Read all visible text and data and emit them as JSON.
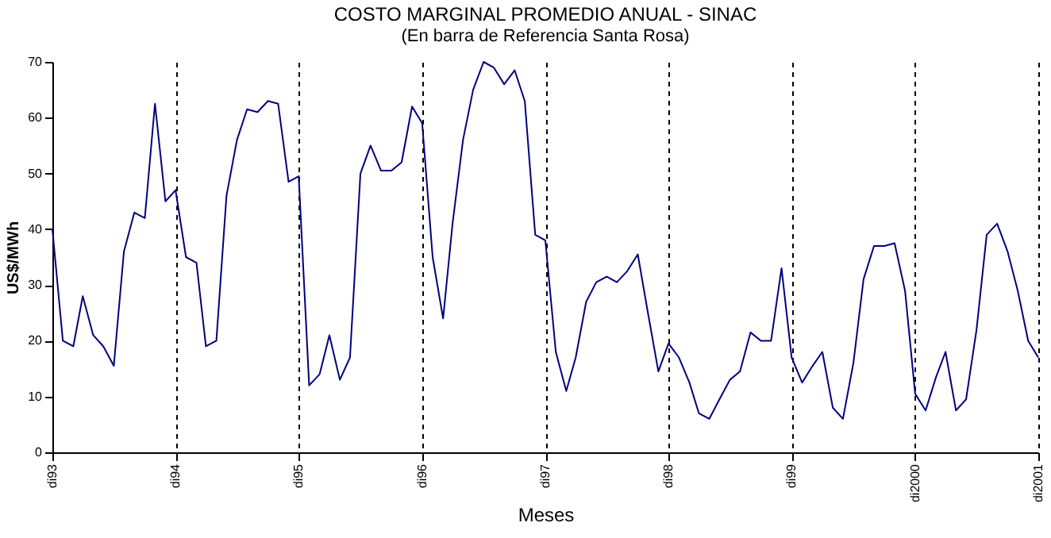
{
  "chart_data": {
    "type": "line",
    "title": "COSTO MARGINAL PROMEDIO ANUAL - SINAC",
    "subtitle": "(En barra de Referencia Santa Rosa)",
    "xlabel": "Meses",
    "ylabel": "US$/MWh",
    "x": [
      "1993-12",
      "1994-01",
      "1994-02",
      "1994-03",
      "1994-04",
      "1994-05",
      "1994-06",
      "1994-07",
      "1994-08",
      "1994-09",
      "1994-10",
      "1994-11",
      "1994-12",
      "1995-01",
      "1995-02",
      "1995-03",
      "1995-04",
      "1995-05",
      "1995-06",
      "1995-07",
      "1995-08",
      "1995-09",
      "1995-10",
      "1995-11",
      "1995-12",
      "1996-01",
      "1996-02",
      "1996-03",
      "1996-04",
      "1996-05",
      "1996-06",
      "1996-07",
      "1996-08",
      "1996-09",
      "1996-10",
      "1996-11",
      "1996-12",
      "1997-01",
      "1997-02",
      "1997-03",
      "1997-04",
      "1997-05",
      "1997-06",
      "1997-07",
      "1997-08",
      "1997-09",
      "1997-10",
      "1997-11",
      "1997-12",
      "1998-01",
      "1998-02",
      "1998-03",
      "1998-04",
      "1998-05",
      "1998-06",
      "1998-07",
      "1998-08",
      "1998-09",
      "1998-10",
      "1998-11",
      "1998-12",
      "1999-01",
      "1999-02",
      "1999-03",
      "1999-04",
      "1999-05",
      "1999-06",
      "1999-07",
      "1999-08",
      "1999-09",
      "1999-10",
      "1999-11",
      "1999-12",
      "2000-01",
      "2000-02",
      "2000-03",
      "2000-04",
      "2000-05",
      "2000-06",
      "2000-07",
      "2000-08",
      "2000-09",
      "2000-10",
      "2000-11",
      "2000-12",
      "2001-01",
      "2001-02",
      "2001-03",
      "2001-04",
      "2001-05",
      "2001-06",
      "2001-07",
      "2001-08",
      "2001-09",
      "2001-10",
      "2001-11",
      "2001-12"
    ],
    "series": [
      {
        "color": "#000080",
        "values": [
          40,
          20,
          19,
          28,
          21,
          19,
          15.5,
          36,
          43,
          42,
          62.5,
          45,
          47,
          35,
          34,
          19,
          20,
          46,
          56,
          61.5,
          61,
          63,
          62.5,
          48.5,
          49.5,
          12,
          14,
          21,
          13,
          17,
          50,
          55,
          50.5,
          50.5,
          52,
          62,
          59,
          35,
          24,
          41,
          56,
          65,
          70,
          69,
          66,
          68.5,
          63,
          39,
          38,
          18,
          11,
          17,
          27,
          30.5,
          31.5,
          30.5,
          32.5,
          35.5,
          25,
          14.5,
          19.5,
          17,
          12.5,
          7,
          6,
          9.5,
          13,
          14.5,
          21.5,
          20,
          20,
          33,
          17,
          12.5,
          15.5,
          18,
          8,
          6,
          16,
          31,
          37,
          37,
          37.5,
          29,
          10.5,
          7.5,
          13.5,
          18,
          7.5,
          9.5,
          22,
          39,
          41,
          36,
          29,
          20,
          17
        ]
      }
    ],
    "xlim": [
      "1993-12",
      "2001-12"
    ],
    "xticks": [
      {
        "value": "1993-12",
        "label": "di93"
      },
      {
        "value": "1994-12",
        "label": "di94"
      },
      {
        "value": "1995-12",
        "label": "di95"
      },
      {
        "value": "1996-12",
        "label": "di96"
      },
      {
        "value": "1997-12",
        "label": "di97"
      },
      {
        "value": "1998-12",
        "label": "di98"
      },
      {
        "value": "1999-12",
        "label": "di99"
      },
      {
        "value": "2000-12",
        "label": "di2000"
      },
      {
        "value": "2001-12",
        "label": "di2001"
      }
    ],
    "ylim": [
      0,
      70
    ],
    "yticks": [
      0,
      10,
      20,
      30,
      40,
      50,
      60,
      70
    ],
    "grid": "x",
    "line_style": "solid",
    "marker": "none"
  }
}
